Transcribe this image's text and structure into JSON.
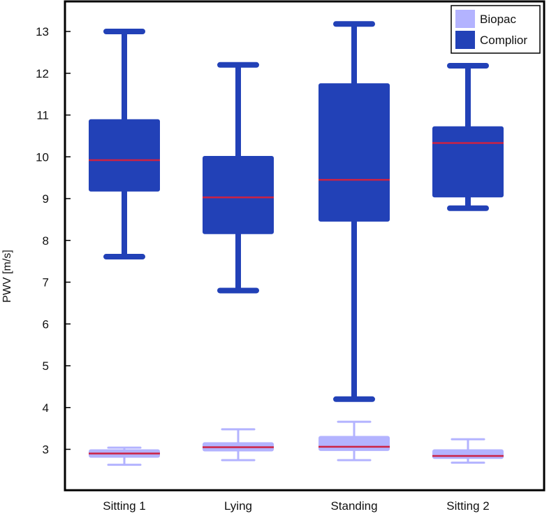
{
  "chart_data": {
    "type": "boxplot",
    "title": "",
    "xlabel": "",
    "ylabel": "PWV [m/s]",
    "ylim": [
      2.5,
      13.6
    ],
    "yticks": [
      3,
      4,
      5,
      6,
      7,
      8,
      9,
      10,
      11,
      12,
      13
    ],
    "categories": [
      "Sitting 1",
      "Lying",
      "Standing",
      "Sitting 2"
    ],
    "legend_position": "top-right",
    "series": [
      {
        "name": "Biopac",
        "color": "#b3b3ff",
        "median_color": "#cc2244",
        "boxes": [
          {
            "min": 2.63,
            "q1": 2.8,
            "median": 2.9,
            "q3": 3.0,
            "max": 3.04
          },
          {
            "min": 2.74,
            "q1": 2.95,
            "median": 3.05,
            "q3": 3.17,
            "max": 3.48
          },
          {
            "min": 2.74,
            "q1": 2.96,
            "median": 3.06,
            "q3": 3.32,
            "max": 3.66
          },
          {
            "min": 2.68,
            "q1": 2.77,
            "median": 2.84,
            "q3": 3.0,
            "max": 3.24
          }
        ]
      },
      {
        "name": "Complior",
        "color": "#2241b7",
        "median_color": "#cc2244",
        "boxes": [
          {
            "min": 7.61,
            "q1": 9.17,
            "median": 9.92,
            "q3": 10.9,
            "max": 13.0
          },
          {
            "min": 6.8,
            "q1": 8.15,
            "median": 9.03,
            "q3": 10.02,
            "max": 12.2
          },
          {
            "min": 4.2,
            "q1": 8.45,
            "median": 9.45,
            "q3": 11.76,
            "max": 13.18
          },
          {
            "min": 8.77,
            "q1": 9.03,
            "median": 10.33,
            "q3": 10.73,
            "max": 12.18
          }
        ]
      }
    ]
  }
}
